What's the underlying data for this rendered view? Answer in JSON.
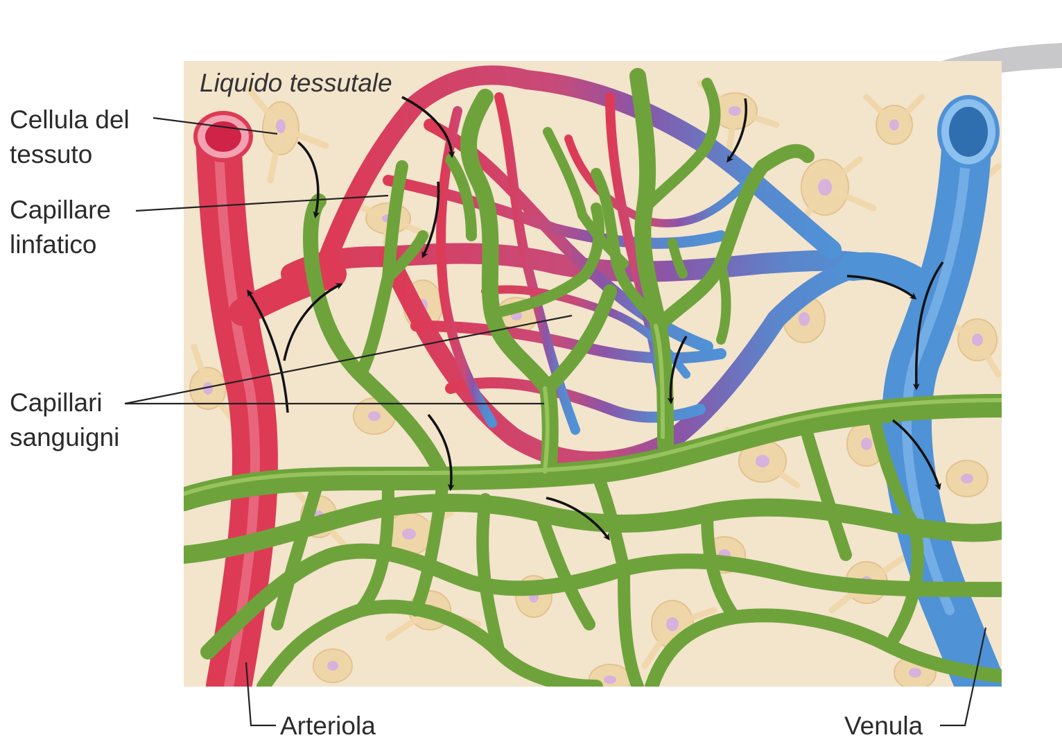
{
  "labels": {
    "tissue_fluid": "Liquido tessutale",
    "tissue_cell": {
      "line1": "Cellula del",
      "line2": "tessuto"
    },
    "lymph_capillary": {
      "line1": "Capillare",
      "line2": "linfatico"
    },
    "blood_capillaries": {
      "line1": "Capillari",
      "line2": "sanguigni"
    },
    "arteriole": "Arteriola",
    "venule": "Venula"
  },
  "colors": {
    "tissue_background": "#f3e4cc",
    "cell_fill": "#efd6a8",
    "nucleus_fill": "#d6b2dc",
    "arteriole_red": "#dd3a55",
    "capillary_mix_purple": "#8a55a8",
    "venule_blue": "#4f92d6",
    "lymphatic_green": "#6ea33c",
    "arrow_black": "#111111",
    "leader_line": "#222222",
    "grey_swoosh": "#c8c8ca"
  },
  "icons": [
    "flow-arrow",
    "leader-line"
  ]
}
